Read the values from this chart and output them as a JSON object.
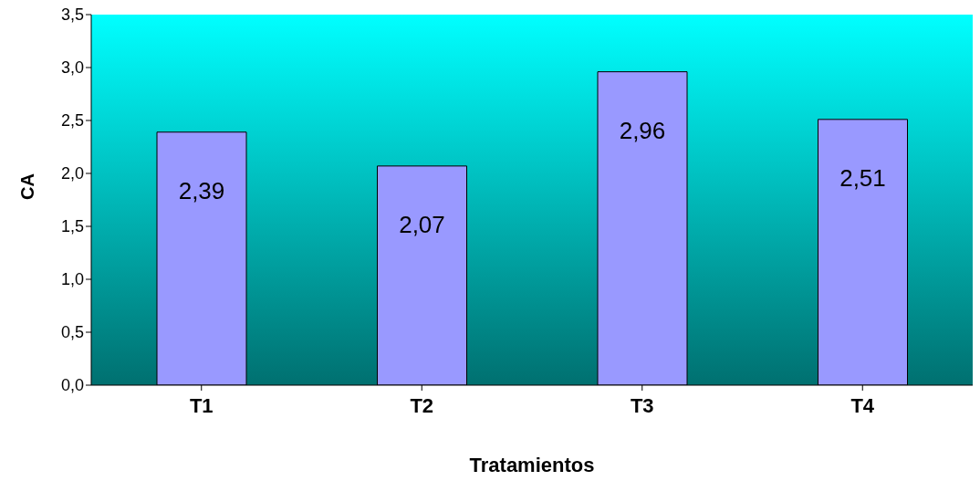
{
  "chart_data": {
    "type": "bar",
    "xlabel": "Tratamientos",
    "ylabel": "CA",
    "categories": [
      "T1",
      "T2",
      "T3",
      "T4"
    ],
    "values": [
      2.39,
      2.07,
      2.96,
      2.51
    ],
    "value_labels": [
      "2,39",
      "2,07",
      "2,96",
      "2,51"
    ],
    "color": "#9999ff",
    "ylim": [
      0,
      3.5
    ],
    "yticks": [
      {
        "value": 0,
        "label": "0,0"
      },
      {
        "value": 0.5,
        "label": "0,5"
      },
      {
        "value": 1,
        "label": "1,0"
      },
      {
        "value": 1.5,
        "label": "1,5"
      },
      {
        "value": 2,
        "label": "2,0"
      },
      {
        "value": 2.5,
        "label": "2,5"
      },
      {
        "value": 3,
        "label": "3,0"
      },
      {
        "value": 3.5,
        "label": "3,5"
      }
    ],
    "grid": false,
    "legend": false
  }
}
